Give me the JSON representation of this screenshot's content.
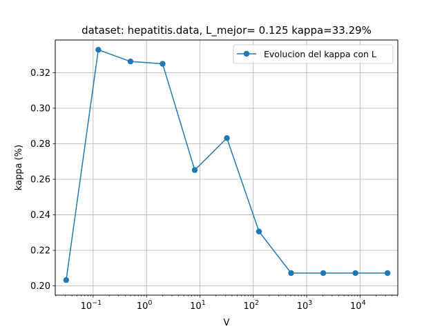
{
  "chart_data": {
    "type": "line",
    "title": "dataset: hepatitis.data, L_mejor= 0.125 kappa=33.29%",
    "xlabel": "V",
    "ylabel": "kappa (%)",
    "xscale": "log",
    "xlim": [
      0.0195,
      51000
    ],
    "ylim": [
      0.1948,
      0.3384
    ],
    "grid": true,
    "legend_position": "top-right",
    "x_ticks": [
      {
        "value": 0.1,
        "base": "10",
        "exp": "−1"
      },
      {
        "value": 1,
        "base": "10",
        "exp": "0"
      },
      {
        "value": 10,
        "base": "10",
        "exp": "1"
      },
      {
        "value": 100,
        "base": "10",
        "exp": "2"
      },
      {
        "value": 1000,
        "base": "10",
        "exp": "3"
      },
      {
        "value": 10000,
        "base": "10",
        "exp": "4"
      }
    ],
    "y_ticks": [
      {
        "value": 0.2,
        "label": "0.20"
      },
      {
        "value": 0.22,
        "label": "0.22"
      },
      {
        "value": 0.24,
        "label": "0.24"
      },
      {
        "value": 0.26,
        "label": "0.26"
      },
      {
        "value": 0.28,
        "label": "0.28"
      },
      {
        "value": 0.3,
        "label": "0.30"
      },
      {
        "value": 0.32,
        "label": "0.32"
      }
    ],
    "series": [
      {
        "name": "Evolucion del kappa con L",
        "color": "#1f77b4",
        "x": [
          0.03125,
          0.125,
          0.5,
          2,
          8,
          32,
          128,
          512,
          2048,
          8192,
          32768
        ],
        "y": [
          0.2033,
          0.3329,
          0.3263,
          0.325,
          0.2652,
          0.2832,
          0.2306,
          0.2072,
          0.2072,
          0.2072,
          0.2072
        ]
      }
    ]
  }
}
